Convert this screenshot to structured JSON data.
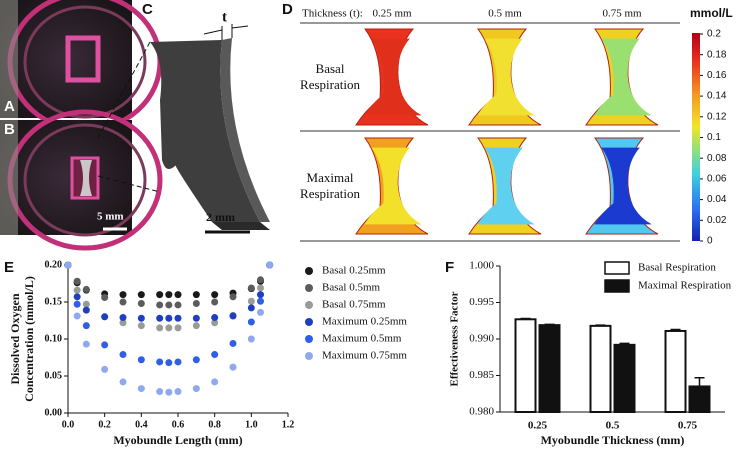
{
  "panel_labels": {
    "a": "A",
    "b": "B",
    "c": "C",
    "d": "D"
  },
  "scale_bars": {
    "photo": "5 mm",
    "drawing": "2 mm"
  },
  "thickness_symbol": "t",
  "panel_d": {
    "thickness_label": "Thickness (t):",
    "thicknesses": [
      "0.25 mm",
      "0.5 mm",
      "0.75 mm"
    ],
    "rows": [
      [
        "Basal",
        "Respiration"
      ],
      [
        "Maximal",
        "Respiration"
      ]
    ],
    "colorbar": {
      "title": "mmol/L",
      "ticks": [
        0.2,
        0.18,
        0.16,
        0.14,
        0.12,
        0.1,
        0.08,
        0.06,
        0.04,
        0.02,
        0
      ]
    }
  },
  "chart_data": [
    {
      "type": "scatter",
      "panel": "E",
      "xlabel": "Myobundle Length (mm)",
      "ylabel": [
        "Dissolved Oxygen",
        "Concentration (mmol/L)"
      ],
      "x": [
        0,
        0.05,
        0.1,
        0.2,
        0.3,
        0.4,
        0.5,
        0.55,
        0.6,
        0.7,
        0.8,
        0.9,
        1.0,
        1.05,
        1.1
      ],
      "series": [
        {
          "name": "Basal 0.25mm",
          "color": "#1a1a1a",
          "values": [
            0.2,
            0.176,
            0.166,
            0.161,
            0.16,
            0.16,
            0.16,
            0.16,
            0.16,
            0.16,
            0.16,
            0.162,
            0.168,
            0.178,
            0.2
          ]
        },
        {
          "name": "Basal 0.5mm",
          "color": "#5c5c5c",
          "values": [
            0.2,
            0.178,
            0.167,
            0.156,
            0.15,
            0.148,
            0.146,
            0.146,
            0.146,
            0.148,
            0.15,
            0.157,
            0.169,
            0.18,
            0.2
          ]
        },
        {
          "name": "Basal 0.75mm",
          "color": "#9a9a9a",
          "values": [
            0.2,
            0.166,
            0.147,
            0.13,
            0.122,
            0.118,
            0.115,
            0.115,
            0.115,
            0.118,
            0.122,
            0.132,
            0.151,
            0.169,
            0.2
          ]
        },
        {
          "name": "Maximum 0.25mm",
          "color": "#1f3fc0",
          "values": [
            0.2,
            0.157,
            0.139,
            0.13,
            0.129,
            0.128,
            0.128,
            0.128,
            0.128,
            0.128,
            0.129,
            0.131,
            0.142,
            0.16,
            0.2
          ]
        },
        {
          "name": "Maximum 0.5mm",
          "color": "#2f5fe6",
          "values": [
            0.2,
            0.147,
            0.118,
            0.092,
            0.079,
            0.072,
            0.069,
            0.068,
            0.069,
            0.072,
            0.079,
            0.094,
            0.123,
            0.151,
            0.2
          ]
        },
        {
          "name": "Maximum 0.75mm",
          "color": "#8fa8ee",
          "values": [
            0.2,
            0.131,
            0.093,
            0.059,
            0.042,
            0.033,
            0.029,
            0.028,
            0.029,
            0.033,
            0.042,
            0.062,
            0.1,
            0.136,
            0.2
          ]
        }
      ],
      "xlim": [
        0,
        1.2
      ],
      "xticks": [
        {
          "value": 0,
          "label": "0.0"
        },
        0.2,
        0.4,
        0.6,
        0.8,
        {
          "value": 1,
          "label": "1.0"
        },
        1.2
      ],
      "ylim": [
        0,
        0.2
      ],
      "yticks": [
        {
          "value": 0,
          "label": "0.00"
        },
        0.05,
        {
          "value": 0.1,
          "label": "0.10"
        },
        0.15,
        {
          "value": 0.2,
          "label": "0.20"
        }
      ]
    },
    {
      "type": "bar",
      "panel": "F",
      "xlabel": "Myobundle Thickness (mm)",
      "ylabel": "Effectiveness Factor",
      "categories": [
        "0.25",
        "0.5",
        "0.75"
      ],
      "series": [
        {
          "name": "Basal Respiration",
          "color": "#ffffff",
          "values": [
            0.9927,
            0.9918,
            0.9911
          ],
          "error": [
            0.0001,
            0.0001,
            0.0002
          ]
        },
        {
          "name": "Maximal Respiration",
          "color": "#111111",
          "values": [
            0.9919,
            0.9892,
            0.9835
          ],
          "error": [
            0.0001,
            0.0002,
            0.0012
          ]
        }
      ],
      "ylim": [
        0.98,
        1.0
      ],
      "yticks": [
        {
          "value": 0.98,
          "label": "0.980"
        },
        0.985,
        {
          "value": 0.99,
          "label": "0.990"
        },
        0.995,
        {
          "value": 1,
          "label": "1.000"
        }
      ],
      "legend": "upper right"
    }
  ]
}
